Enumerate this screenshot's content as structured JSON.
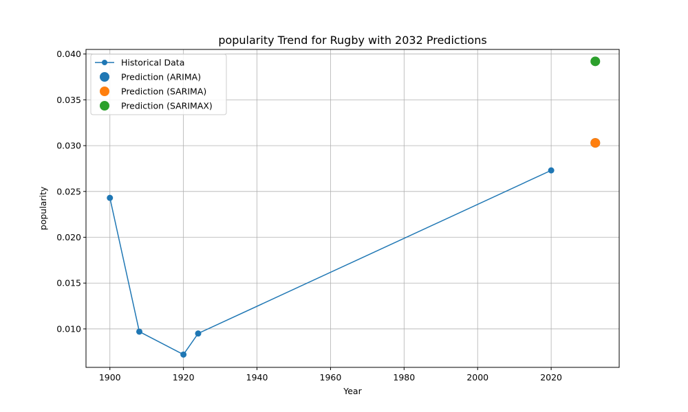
{
  "chart_data": {
    "type": "line",
    "title": "popularity Trend for Rugby with 2032 Predictions",
    "xlabel": "Year",
    "ylabel": "popularity",
    "xlim": [
      1893.5,
      2038.5
    ],
    "ylim": [
      0.0058,
      0.0405
    ],
    "x_ticks": [
      1900,
      1920,
      1940,
      1960,
      1980,
      2000,
      2020
    ],
    "y_ticks": [
      0.01,
      0.015,
      0.02,
      0.025,
      0.03,
      0.035,
      0.04
    ],
    "y_tick_labels": [
      "0.010",
      "0.015",
      "0.020",
      "0.025",
      "0.030",
      "0.035",
      "0.040"
    ],
    "grid": true,
    "legend_position": "top-left",
    "series": [
      {
        "name": "Historical Data",
        "kind": "line-marker",
        "color": "#1f77b4",
        "x": [
          1900,
          1908,
          1920,
          1924,
          2020
        ],
        "y": [
          0.0243,
          0.0097,
          0.0072,
          0.0095,
          0.0273
        ]
      },
      {
        "name": "Prediction (ARIMA)",
        "kind": "point",
        "color": "#1f77b4",
        "x": [
          2032
        ],
        "y": [
          0.0303
        ]
      },
      {
        "name": "Prediction (SARIMA)",
        "kind": "point",
        "color": "#ff7f0e",
        "x": [
          2032
        ],
        "y": [
          0.0303
        ]
      },
      {
        "name": "Prediction (SARIMAX)",
        "kind": "point",
        "color": "#2ca02c",
        "x": [
          2032
        ],
        "y": [
          0.0392
        ]
      }
    ]
  }
}
